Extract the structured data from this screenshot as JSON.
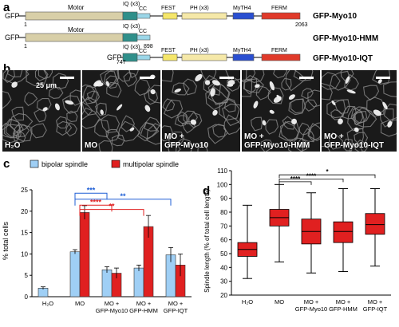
{
  "panel_a": {
    "label": "a",
    "constructs": [
      {
        "name": "GFP-Myo10",
        "tag": "GFP",
        "start": "1",
        "end": "2063",
        "domains": [
          "Motor",
          "IQ (x3)",
          "CC",
          "FEST",
          "PH (x3)",
          "MyTH4",
          "FERM"
        ]
      },
      {
        "name": "GFP-Myo10-HMM",
        "tag": "GFP",
        "start": "1",
        "end": "898",
        "domains": [
          "Motor",
          "IQ (x3)",
          "CC"
        ]
      },
      {
        "name": "GFP-Myo10-IQT",
        "tag": "GFP",
        "start": "747",
        "end": "2063",
        "domains": [
          "IQ (x3)",
          "CC",
          "FEST",
          "PH (x3)",
          "MyTH4",
          "FERM"
        ]
      }
    ],
    "colors": {
      "motor": "#d8cfa8",
      "iq": "#2f8f8a",
      "cc": "#9bd6e8",
      "fest": "#f5e66a",
      "ph": "#f5e8a8",
      "myth4": "#2a4fd1",
      "ferm": "#e03a2a"
    }
  },
  "panel_b": {
    "label": "b",
    "scale_bar": "25 μm",
    "images": [
      {
        "caption": "H₂O"
      },
      {
        "caption": "MO"
      },
      {
        "caption": "MO +\nGFP-Myo10"
      },
      {
        "caption": "MO +\nGFP-Myo10-HMM"
      },
      {
        "caption": "MO +\nGFP-Myo10-IQT"
      }
    ]
  },
  "panel_c": {
    "label": "c",
    "legend": [
      "bipolar spindle",
      "multipolar spindle"
    ],
    "ylabel": "% total cells",
    "significance": [
      "***",
      "**",
      "****",
      "**"
    ],
    "chart_data": {
      "type": "bar",
      "categories": [
        "H₂O",
        "MO",
        "MO + GFP-Myo10",
        "MO + GFP-HMM",
        "MO + GFP-IQT"
      ],
      "series": [
        {
          "name": "bipolar spindle",
          "values": [
            2,
            10.5,
            6.3,
            6.7,
            9.8
          ],
          "errors": [
            0.3,
            0.5,
            0.7,
            0.7,
            1.7
          ],
          "color": "#9fcff5"
        },
        {
          "name": "multipolar spindle",
          "values": [
            0,
            19.7,
            5.5,
            16.4,
            7.4
          ],
          "errors": [
            0,
            1.6,
            1.2,
            2.6,
            2.6
          ],
          "color": "#e02020"
        }
      ],
      "ylim": [
        0,
        25
      ],
      "yticks": [
        0,
        5,
        10,
        15,
        20,
        25
      ]
    }
  },
  "panel_d": {
    "label": "d",
    "ylabel": "Spindle length (% of total cell length)",
    "significance": [
      "****",
      "****",
      "*"
    ],
    "chart_data": {
      "type": "box",
      "categories": [
        "H₂O",
        "MO",
        "MO + GFP-Myo10",
        "MO + GFP-HMM",
        "MO + GFP-IQT"
      ],
      "boxes": [
        {
          "min": 32,
          "q1": 48,
          "median": 53,
          "q3": 58,
          "max": 85
        },
        {
          "min": 44,
          "q1": 70,
          "median": 76,
          "q3": 82,
          "max": 100
        },
        {
          "min": 36,
          "q1": 57,
          "median": 66,
          "q3": 75,
          "max": 94
        },
        {
          "min": 37,
          "q1": 58,
          "median": 66,
          "q3": 73,
          "max": 97
        },
        {
          "min": 41,
          "q1": 64,
          "median": 71,
          "q3": 79,
          "max": 97
        }
      ],
      "color": "#e02020",
      "ylim": [
        20,
        110
      ],
      "yticks": [
        20,
        30,
        40,
        50,
        60,
        70,
        80,
        90,
        100,
        110
      ]
    }
  }
}
